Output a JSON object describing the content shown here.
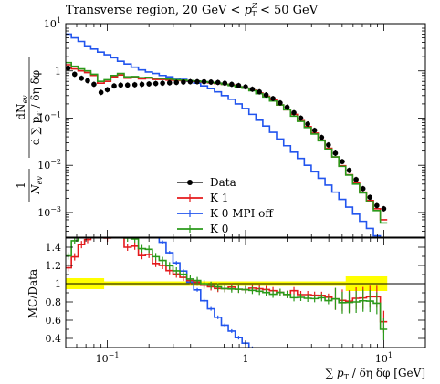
{
  "chart_data": {
    "type": "line",
    "title": "Transverse region, 20 GeV < p_T^Z < 50 GeV",
    "title_parts": {
      "prefix": "Transverse region, 20 GeV < ",
      "var": "p",
      "sub": "T",
      "sup": "Z",
      "suffix": " < 50 GeV"
    },
    "xlabel": "∑ pT / δη δφ [GeV]",
    "xlabel_parts": {
      "sum": "∑ ",
      "p": "p",
      "sub": "T",
      "rest": " / δη δφ [GeV]"
    },
    "ylabel": "1/N_ev dN_ev/d∑pT/δηδφ",
    "ylabel_parts": {
      "one": "1",
      "nev_denom": "N",
      "nev_sub": "ev",
      "num": "dN",
      "num_sub": "ev",
      "den_d": "d ∑ p",
      "den_sub": "T",
      "den_rest": " / δη δφ"
    },
    "ratio_ylabel": "MC/Data",
    "x_scale": "log",
    "xlim": [
      0.05,
      20
    ],
    "top_ylim": [
      0.0003,
      10
    ],
    "ratio_ylim": [
      0.3,
      1.5
    ],
    "x_ticks": [
      {
        "v": 0.1,
        "b": "10",
        "e": "−1"
      },
      {
        "v": 1,
        "b": "1",
        "e": ""
      },
      {
        "v": 10,
        "b": "10",
        "e": "1"
      }
    ],
    "top_y_ticks": [
      {
        "v": 10,
        "b": "10",
        "e": "1"
      },
      {
        "v": 1,
        "b": "1",
        "e": ""
      },
      {
        "v": 0.1,
        "b": "10",
        "e": "−1"
      },
      {
        "v": 0.01,
        "b": "10",
        "e": "−2"
      },
      {
        "v": 0.001,
        "b": "10",
        "e": "−3"
      }
    ],
    "ratio_y_ticks": [
      {
        "v": 1.4,
        "label": "1.4"
      },
      {
        "v": 1.2,
        "label": "1.2"
      },
      {
        "v": 1.0,
        "label": "1"
      },
      {
        "v": 0.8,
        "label": "0.8"
      },
      {
        "v": 0.6,
        "label": "0.6"
      },
      {
        "v": 0.4,
        "label": "0.4"
      }
    ],
    "legend_position": "center-bottom",
    "legend": [
      {
        "key": "data",
        "label": "Data",
        "color": "#000000",
        "style": "marker"
      },
      {
        "key": "k1",
        "label": "K 1",
        "color": "#e41a1c",
        "style": "line"
      },
      {
        "key": "k0off",
        "label": "K 0 MPI off",
        "color": "#2255ee",
        "style": "line"
      },
      {
        "key": "k0",
        "label": "K 0",
        "color": "#2a9a1a",
        "style": "line"
      }
    ],
    "band_color": "#ffff00",
    "x": [
      0.052,
      0.058,
      0.065,
      0.072,
      0.08,
      0.09,
      0.1,
      0.112,
      0.125,
      0.14,
      0.158,
      0.178,
      0.2,
      0.224,
      0.251,
      0.282,
      0.316,
      0.355,
      0.398,
      0.447,
      0.501,
      0.562,
      0.631,
      0.708,
      0.794,
      0.891,
      1.0,
      1.12,
      1.26,
      1.41,
      1.58,
      1.78,
      2.0,
      2.24,
      2.51,
      2.82,
      3.16,
      3.55,
      3.98,
      4.47,
      5.01,
      5.62,
      6.31,
      7.08,
      7.94,
      8.91,
      10.0
    ],
    "series": [
      {
        "name": "Data",
        "key": "data",
        "values": [
          1.15,
          0.85,
          0.7,
          0.62,
          0.52,
          0.35,
          0.4,
          0.48,
          0.5,
          0.5,
          0.51,
          0.52,
          0.53,
          0.54,
          0.55,
          0.56,
          0.57,
          0.58,
          0.59,
          0.59,
          0.59,
          0.58,
          0.57,
          0.55,
          0.52,
          0.49,
          0.46,
          0.41,
          0.36,
          0.31,
          0.26,
          0.21,
          0.17,
          0.13,
          0.1,
          0.075,
          0.055,
          0.039,
          0.027,
          0.018,
          0.012,
          0.0078,
          0.005,
          0.0032,
          0.0021,
          0.0014,
          0.0012
        ]
      },
      {
        "name": "K 1",
        "key": "k1",
        "values": [
          1.35,
          1.1,
          1.0,
          0.92,
          0.8,
          0.55,
          0.6,
          0.75,
          0.82,
          0.7,
          0.72,
          0.68,
          0.7,
          0.66,
          0.66,
          0.64,
          0.63,
          0.62,
          0.61,
          0.6,
          0.58,
          0.56,
          0.54,
          0.52,
          0.5,
          0.46,
          0.43,
          0.39,
          0.34,
          0.29,
          0.24,
          0.19,
          0.15,
          0.12,
          0.088,
          0.066,
          0.048,
          0.034,
          0.023,
          0.015,
          0.0098,
          0.0063,
          0.0042,
          0.0027,
          0.0018,
          0.0012,
          0.0007
        ]
      },
      {
        "name": "K 0 MPI off",
        "key": "k0off",
        "values": [
          6.0,
          5.0,
          4.2,
          3.4,
          2.9,
          2.5,
          2.2,
          1.9,
          1.6,
          1.4,
          1.2,
          1.05,
          0.95,
          0.88,
          0.8,
          0.75,
          0.7,
          0.66,
          0.6,
          0.55,
          0.48,
          0.42,
          0.36,
          0.3,
          0.25,
          0.2,
          0.16,
          0.12,
          0.09,
          0.068,
          0.05,
          0.036,
          0.026,
          0.019,
          0.014,
          0.01,
          0.0073,
          0.0053,
          0.0038,
          0.0027,
          0.0019,
          0.0013,
          0.00092,
          0.00065,
          0.00046,
          0.00032,
          0.00025
        ]
      },
      {
        "name": "K 0",
        "key": "k0",
        "values": [
          1.5,
          1.25,
          1.1,
          1.0,
          0.85,
          0.6,
          0.65,
          0.8,
          0.88,
          0.75,
          0.76,
          0.72,
          0.73,
          0.7,
          0.69,
          0.67,
          0.65,
          0.64,
          0.62,
          0.61,
          0.59,
          0.57,
          0.55,
          0.52,
          0.49,
          0.46,
          0.43,
          0.38,
          0.33,
          0.28,
          0.23,
          0.19,
          0.15,
          0.11,
          0.085,
          0.063,
          0.046,
          0.033,
          0.022,
          0.015,
          0.0095,
          0.0062,
          0.004,
          0.0026,
          0.0017,
          0.0011,
          0.0006
        ]
      }
    ]
  }
}
